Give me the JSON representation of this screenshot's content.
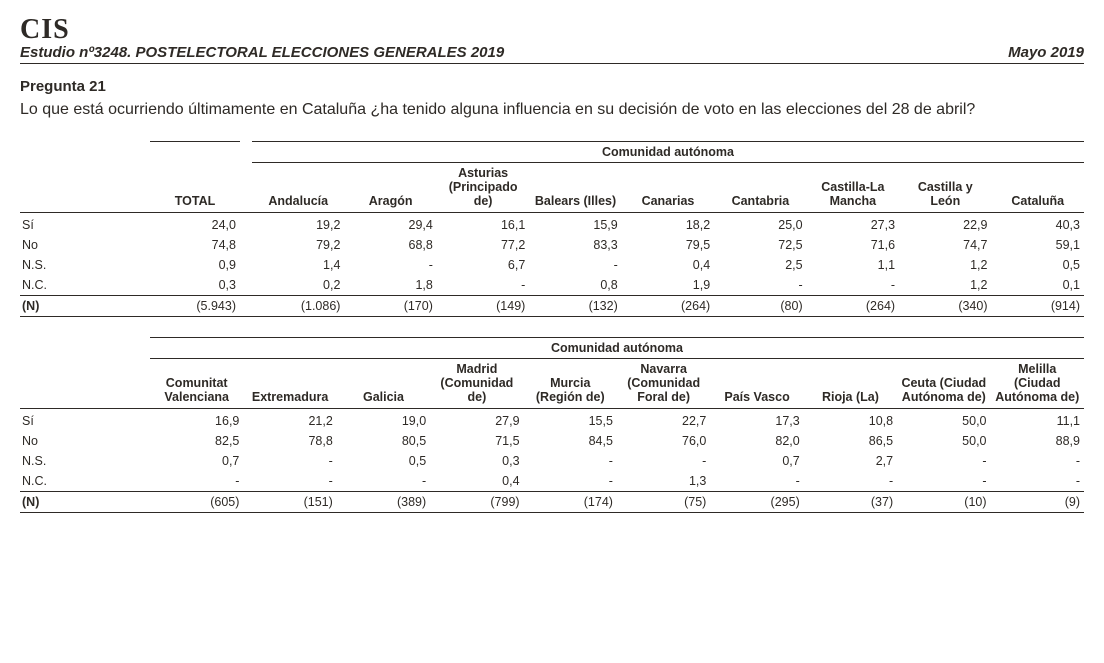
{
  "header": {
    "org": "CIS",
    "study": "Estudio nº3248. POSTELECTORAL ELECCIONES GENERALES 2019",
    "date": "Mayo 2019"
  },
  "question": {
    "number": "Pregunta 21",
    "text": "Lo que está ocurriendo últimamente en Cataluña ¿ha tenido alguna influencia en su decisión de voto en las elecciones del 28 de abril?"
  },
  "spanner": "Comunidad autónoma",
  "total_label": "TOTAL",
  "row_labels": [
    "Sí",
    "No",
    "N.S.",
    "N.C.",
    "(N)"
  ],
  "table1": {
    "cols": [
      "Andalucía",
      "Aragón",
      "Asturias (Principado de)",
      "Balears (Illes)",
      "Canarias",
      "Cantabria",
      "Castilla-La Mancha",
      "Castilla y León",
      "Cataluña"
    ],
    "total": [
      "24,0",
      "74,8",
      "0,9",
      "0,3",
      "(5.943)"
    ],
    "data": [
      [
        "19,2",
        "29,4",
        "16,1",
        "15,9",
        "18,2",
        "25,0",
        "27,3",
        "22,9",
        "40,3"
      ],
      [
        "79,2",
        "68,8",
        "77,2",
        "83,3",
        "79,5",
        "72,5",
        "71,6",
        "74,7",
        "59,1"
      ],
      [
        "1,4",
        "-",
        "6,7",
        "-",
        "0,4",
        "2,5",
        "1,1",
        "1,2",
        "0,5"
      ],
      [
        "0,2",
        "1,8",
        "-",
        "0,8",
        "1,9",
        "-",
        "-",
        "1,2",
        "0,1"
      ],
      [
        "(1.086)",
        "(170)",
        "(149)",
        "(132)",
        "(264)",
        "(80)",
        "(264)",
        "(340)",
        "(914)"
      ]
    ]
  },
  "table2": {
    "cols": [
      "Comunitat Valenciana",
      "Extremadura",
      "Galicia",
      "Madrid (Comunidad de)",
      "Murcia (Región de)",
      "Navarra (Comunidad Foral de)",
      "País Vasco",
      "Rioja (La)",
      "Ceuta (Ciudad Autónoma de)",
      "Melilla (Ciudad Autónoma de)"
    ],
    "data": [
      [
        "16,9",
        "21,2",
        "19,0",
        "27,9",
        "15,5",
        "22,7",
        "17,3",
        "10,8",
        "50,0",
        "11,1"
      ],
      [
        "82,5",
        "78,8",
        "80,5",
        "71,5",
        "84,5",
        "76,0",
        "82,0",
        "86,5",
        "50,0",
        "88,9"
      ],
      [
        "0,7",
        "-",
        "0,5",
        "0,3",
        "-",
        "-",
        "0,7",
        "2,7",
        "-",
        "-"
      ],
      [
        "-",
        "-",
        "-",
        "0,4",
        "-",
        "1,3",
        "-",
        "-",
        "-",
        "-"
      ],
      [
        "(605)",
        "(151)",
        "(389)",
        "(799)",
        "(174)",
        "(75)",
        "(295)",
        "(37)",
        "(10)",
        "(9)"
      ]
    ]
  }
}
